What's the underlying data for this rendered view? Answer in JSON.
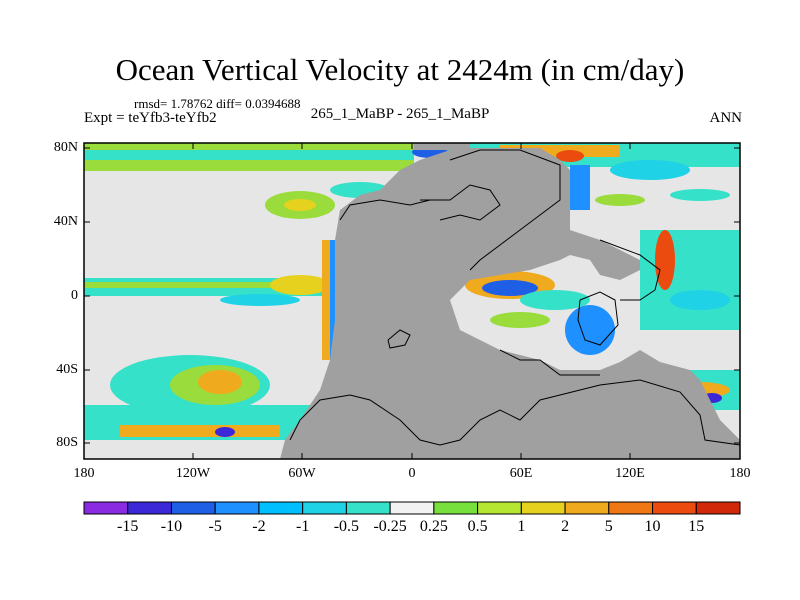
{
  "header": {
    "title": "Ocean Vertical Velocity at 2424m (in cm/day)",
    "stats": "rmsd= 1.78762 diff= 0.0394688",
    "expt": "Expt = teYfb3-teYfb2",
    "center_label": "265_1_MaBP - 265_1_MaBP",
    "season": "ANN"
  },
  "map": {
    "lat_ticks": [
      "80N",
      "40N",
      "0",
      "40S",
      "80S"
    ],
    "lon_ticks": [
      "180",
      "120W",
      "60W",
      "0",
      "60E",
      "120E",
      "180"
    ],
    "land_color": "#a0a0a0",
    "background_color": "#e6e6e6"
  },
  "colorbar": {
    "labels": [
      "-15",
      "-10",
      "-5",
      "-2",
      "-1",
      "-0.5",
      "-0.25",
      "0.25",
      "0.5",
      "1",
      "2",
      "5",
      "10",
      "15"
    ],
    "colors": [
      "#8a2be2",
      "#3c28d6",
      "#1e5fe6",
      "#1e90ff",
      "#00bfff",
      "#20d2e6",
      "#35e1c8",
      "#f2f2f2",
      "#78e03c",
      "#b4e632",
      "#e6d21e",
      "#f0aa1e",
      "#f07814",
      "#eb4b0f",
      "#d2280a"
    ]
  }
}
